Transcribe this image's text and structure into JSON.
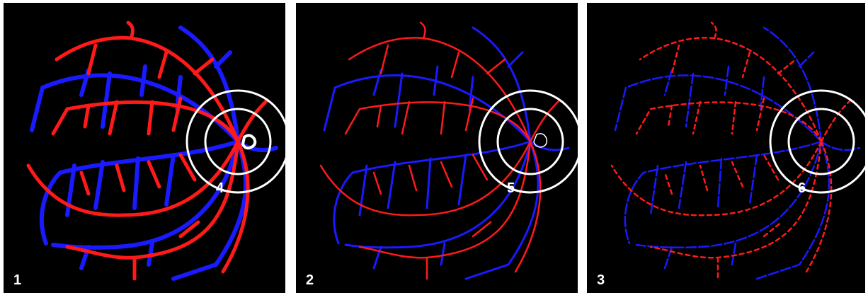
{
  "panels": [
    {
      "label": "1",
      "circle_label": "4"
    },
    {
      "label": "2",
      "circle_label": "5"
    },
    {
      "label": "3",
      "circle_label": "6"
    }
  ]
}
